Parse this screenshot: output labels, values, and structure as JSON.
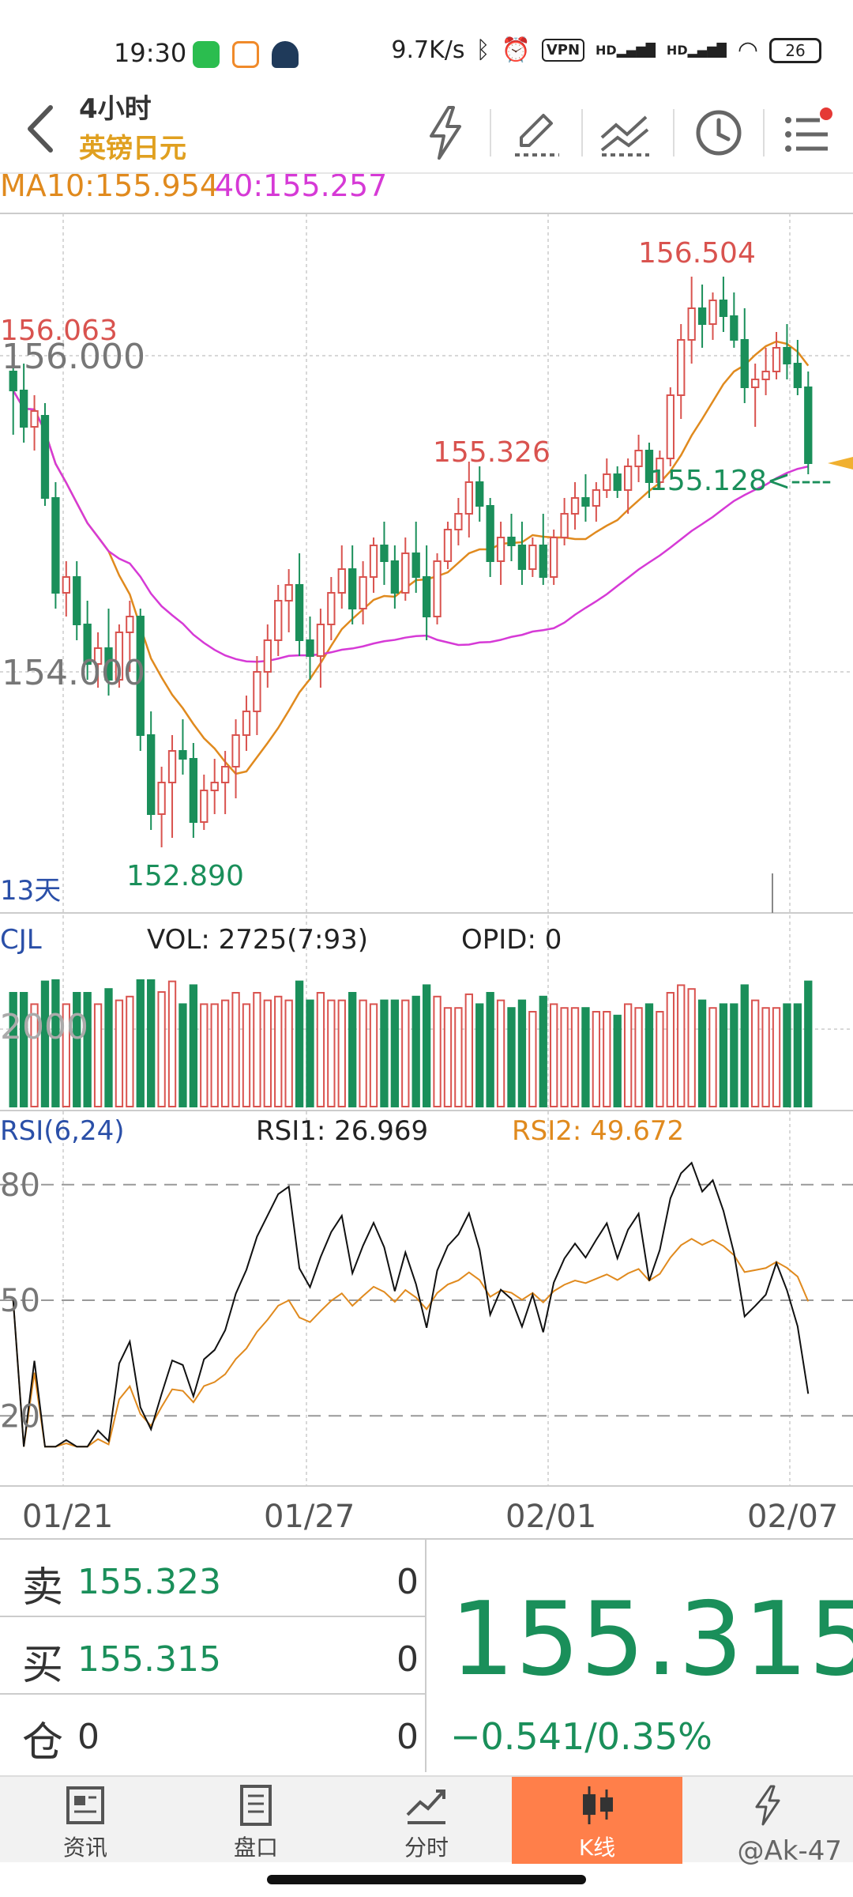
{
  "status": {
    "time": "19:30",
    "net_speed": "9.7K/s",
    "vpn": "VPN",
    "signal1": "HD",
    "signal2": "HD",
    "battery": "26"
  },
  "header": {
    "timeframe": "4小时",
    "symbol": "英镑日元"
  },
  "chart_data": {
    "type": "candlestick",
    "ma_legend": {
      "ma10": "MA10:155.954",
      "ma40": "40:155.257"
    },
    "y_ticks": [
      "156.000",
      "154.000"
    ],
    "x_ticks": [
      "01/21",
      "01/27",
      "02/01",
      "02/07"
    ],
    "annotations": {
      "high_left": "156.063",
      "low": "152.890",
      "mid_high": "155.326",
      "high": "156.504",
      "current": "155.128<----",
      "period": "13天"
    },
    "y_range": [
      152.5,
      156.9
    ],
    "ohlc": [
      [
        155.9,
        156.0,
        155.5,
        155.78
      ],
      [
        155.78,
        155.95,
        155.45,
        155.55
      ],
      [
        155.55,
        155.75,
        155.4,
        155.65
      ],
      [
        155.62,
        155.7,
        155.05,
        155.1
      ],
      [
        155.1,
        155.2,
        154.4,
        154.5
      ],
      [
        154.5,
        154.7,
        154.35,
        154.6
      ],
      [
        154.6,
        154.7,
        154.2,
        154.3
      ],
      [
        154.3,
        154.45,
        153.95,
        154.05
      ],
      [
        154.05,
        154.25,
        153.9,
        154.15
      ],
      [
        154.15,
        154.4,
        153.85,
        153.95
      ],
      [
        153.95,
        154.3,
        153.9,
        154.25
      ],
      [
        154.25,
        154.45,
        154.0,
        154.35
      ],
      [
        154.35,
        154.4,
        153.5,
        153.6
      ],
      [
        153.6,
        153.75,
        153.0,
        153.1
      ],
      [
        153.1,
        153.4,
        152.89,
        153.3
      ],
      [
        153.3,
        153.6,
        152.95,
        153.5
      ],
      [
        153.5,
        153.7,
        153.35,
        153.45
      ],
      [
        153.45,
        153.55,
        152.95,
        153.05
      ],
      [
        153.05,
        153.35,
        153.0,
        153.25
      ],
      [
        153.25,
        153.45,
        153.1,
        153.3
      ],
      [
        153.3,
        153.5,
        153.1,
        153.4
      ],
      [
        153.4,
        153.7,
        153.2,
        153.6
      ],
      [
        153.6,
        153.85,
        153.5,
        153.75
      ],
      [
        153.75,
        154.1,
        153.6,
        154.0
      ],
      [
        154.0,
        154.3,
        153.9,
        154.2
      ],
      [
        154.2,
        154.55,
        154.1,
        154.45
      ],
      [
        154.45,
        154.65,
        154.25,
        154.55
      ],
      [
        154.55,
        154.75,
        154.1,
        154.2
      ],
      [
        154.2,
        154.35,
        153.95,
        154.1
      ],
      [
        154.1,
        154.4,
        153.9,
        154.3
      ],
      [
        154.3,
        154.6,
        154.2,
        154.5
      ],
      [
        154.5,
        154.8,
        154.4,
        154.65
      ],
      [
        154.65,
        154.8,
        154.3,
        154.4
      ],
      [
        154.4,
        154.7,
        154.3,
        154.6
      ],
      [
        154.6,
        154.85,
        154.5,
        154.8
      ],
      [
        154.8,
        154.95,
        154.55,
        154.7
      ],
      [
        154.7,
        154.8,
        154.4,
        154.5
      ],
      [
        154.5,
        154.85,
        154.45,
        154.75
      ],
      [
        154.75,
        154.95,
        154.5,
        154.6
      ],
      [
        154.6,
        154.8,
        154.2,
        154.35
      ],
      [
        154.35,
        154.75,
        154.3,
        154.7
      ],
      [
        154.7,
        154.95,
        154.65,
        154.9
      ],
      [
        154.9,
        155.1,
        154.8,
        155.0
      ],
      [
        155.0,
        155.33,
        154.85,
        155.2
      ],
      [
        155.2,
        155.3,
        154.95,
        155.05
      ],
      [
        155.05,
        155.1,
        154.6,
        154.7
      ],
      [
        154.7,
        154.95,
        154.55,
        154.85
      ],
      [
        154.85,
        155.0,
        154.7,
        154.8
      ],
      [
        154.8,
        154.95,
        154.55,
        154.65
      ],
      [
        154.65,
        154.85,
        154.6,
        154.8
      ],
      [
        154.8,
        155.0,
        154.55,
        154.6
      ],
      [
        154.6,
        154.9,
        154.55,
        154.85
      ],
      [
        154.85,
        155.1,
        154.8,
        155.0
      ],
      [
        155.0,
        155.2,
        154.9,
        155.1
      ],
      [
        155.1,
        155.25,
        154.95,
        155.05
      ],
      [
        155.05,
        155.2,
        154.95,
        155.15
      ],
      [
        155.15,
        155.35,
        155.1,
        155.25
      ],
      [
        155.25,
        155.3,
        155.1,
        155.15
      ],
      [
        155.15,
        155.35,
        155.0,
        155.3
      ],
      [
        155.3,
        155.5,
        155.2,
        155.4
      ],
      [
        155.4,
        155.45,
        155.1,
        155.2
      ],
      [
        155.2,
        155.4,
        155.15,
        155.35
      ],
      [
        155.35,
        155.8,
        155.3,
        155.75
      ],
      [
        155.75,
        156.2,
        155.6,
        156.1
      ],
      [
        156.1,
        156.5,
        155.95,
        156.3
      ],
      [
        156.3,
        156.45,
        156.05,
        156.2
      ],
      [
        156.2,
        156.4,
        156.1,
        156.35
      ],
      [
        156.35,
        156.5,
        156.15,
        156.25
      ],
      [
        156.25,
        156.4,
        156.05,
        156.1
      ],
      [
        156.1,
        156.3,
        155.7,
        155.8
      ],
      [
        155.8,
        155.95,
        155.55,
        155.85
      ],
      [
        155.85,
        156.05,
        155.75,
        155.9
      ],
      [
        155.9,
        156.15,
        155.85,
        156.05
      ],
      [
        156.05,
        156.2,
        155.85,
        155.95
      ],
      [
        155.95,
        156.1,
        155.75,
        155.8
      ],
      [
        155.8,
        155.9,
        155.25,
        155.32
      ]
    ],
    "volume_panel": {
      "name": "CJL",
      "vol": "VOL: 2725(7:93)",
      "opid": "OPID: 0",
      "y_tick": "2000"
    },
    "rsi_panel": {
      "name": "RSI(6,24)",
      "rsi1": "RSI1: 26.969",
      "rsi2": "RSI2: 49.672",
      "ticks": [
        "80",
        "50",
        "20"
      ]
    },
    "colors": {
      "up": "#d9534f",
      "down": "#1a8f5a",
      "ma10": "#e08a1e",
      "ma40": "#d63ad6"
    }
  },
  "quote": {
    "sell_label": "卖",
    "sell_price": "155.323",
    "sell_qty": "0",
    "buy_label": "买",
    "buy_price": "155.315",
    "buy_qty": "0",
    "pos_label": "仓",
    "pos_value": "0",
    "pos_qty": "0",
    "last_price": "155.315",
    "change": "−0.541/0.35%"
  },
  "nav": {
    "items": [
      "资讯",
      "盘口",
      "分时",
      "K线",
      ""
    ],
    "watermark": "@Ak-47"
  }
}
